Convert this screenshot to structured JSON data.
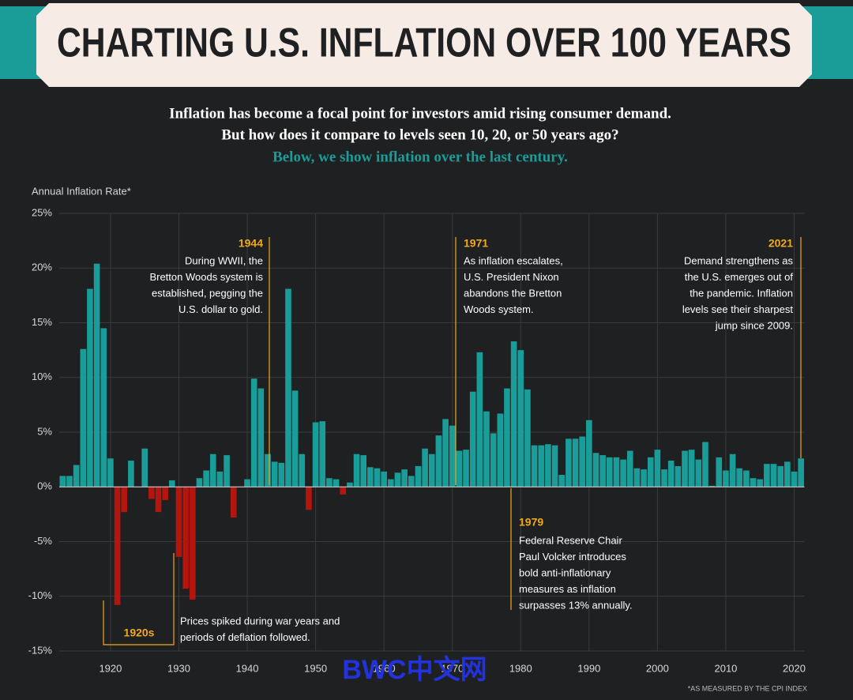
{
  "chart_data": {
    "type": "bar",
    "title": "CHARTING U.S. INFLATION OVER 100 YEARS",
    "subtitle": [
      "Inflation has become a focal point for investors amid rising consumer demand.",
      "But how does it compare to levels seen 10, 20, or 50 years ago?",
      "Below, we show inflation over the last century."
    ],
    "y_label": "Annual Inflation Rate*",
    "footnote": "*AS MEASURED BY THE CPI INDEX",
    "watermark": "BWC中文网",
    "x": [
      1913,
      1914,
      1915,
      1916,
      1917,
      1918,
      1919,
      1920,
      1921,
      1922,
      1923,
      1924,
      1925,
      1926,
      1927,
      1928,
      1929,
      1930,
      1931,
      1932,
      1933,
      1934,
      1935,
      1936,
      1937,
      1938,
      1939,
      1940,
      1941,
      1942,
      1943,
      1944,
      1945,
      1946,
      1947,
      1948,
      1949,
      1950,
      1951,
      1952,
      1953,
      1954,
      1955,
      1956,
      1957,
      1958,
      1959,
      1960,
      1961,
      1962,
      1963,
      1964,
      1965,
      1966,
      1967,
      1968,
      1969,
      1970,
      1971,
      1972,
      1973,
      1974,
      1975,
      1976,
      1977,
      1978,
      1979,
      1980,
      1981,
      1982,
      1983,
      1984,
      1985,
      1986,
      1987,
      1988,
      1989,
      1990,
      1991,
      1992,
      1993,
      1994,
      1995,
      1996,
      1997,
      1998,
      1999,
      2000,
      2001,
      2002,
      2003,
      2004,
      2005,
      2006,
      2007,
      2008,
      2009,
      2010,
      2011,
      2012,
      2013,
      2014,
      2015,
      2016,
      2017,
      2018,
      2019,
      2020,
      2021
    ],
    "values": [
      1.0,
      1.0,
      2.0,
      12.6,
      18.1,
      20.4,
      14.5,
      2.6,
      -10.8,
      -2.3,
      2.4,
      0.0,
      3.5,
      -1.1,
      -2.3,
      -1.2,
      0.6,
      -6.4,
      -9.3,
      -10.3,
      0.8,
      1.5,
      3.0,
      1.4,
      2.9,
      -2.8,
      0.0,
      0.7,
      9.9,
      9.0,
      3.0,
      2.3,
      2.2,
      18.1,
      8.8,
      3.0,
      -2.1,
      5.9,
      6.0,
      0.8,
      0.7,
      -0.7,
      0.4,
      3.0,
      2.9,
      1.8,
      1.7,
      1.4,
      0.7,
      1.3,
      1.6,
      1.0,
      1.9,
      3.5,
      3.0,
      4.7,
      6.2,
      5.6,
      3.3,
      3.4,
      8.7,
      12.3,
      6.9,
      4.9,
      6.7,
      9.0,
      13.3,
      12.5,
      8.9,
      3.8,
      3.8,
      3.9,
      3.8,
      1.1,
      4.4,
      4.4,
      4.6,
      6.1,
      3.1,
      2.9,
      2.7,
      2.7,
      2.5,
      3.3,
      1.7,
      1.6,
      2.7,
      3.4,
      1.6,
      2.4,
      1.9,
      3.3,
      3.4,
      2.5,
      4.1,
      0.1,
      2.7,
      1.5,
      3.0,
      1.7,
      1.5,
      0.8,
      0.7,
      2.1,
      2.1,
      1.9,
      2.3,
      1.4,
      2.6
    ],
    "positive_color": "#1a9c98",
    "negative_color": "#b3150f",
    "xlim": [
      1912.5,
      2021.5
    ],
    "xticks": [
      1920,
      1930,
      1940,
      1950,
      1960,
      1970,
      1980,
      1990,
      2000,
      2010,
      2020
    ],
    "ylim": [
      -15,
      25
    ],
    "yticks": [
      {
        "value": -15,
        "label": "-15%"
      },
      {
        "value": -10,
        "label": "-10%"
      },
      {
        "value": -5,
        "label": "-5%"
      },
      {
        "value": 0,
        "label": "0%"
      },
      {
        "value": 5,
        "label": "5%"
      },
      {
        "value": 10,
        "label": "10%"
      },
      {
        "value": 15,
        "label": "15%"
      },
      {
        "value": 20,
        "label": "20%"
      },
      {
        "value": 25,
        "label": "25%"
      }
    ],
    "grid": true,
    "annotations": [
      {
        "label": "1944",
        "text": [
          "During WWII, the",
          "Bretton Woods system is",
          "established, pegging the",
          "U.S. dollar to gold."
        ]
      },
      {
        "label": "1971",
        "text": [
          "As inflation escalates,",
          "U.S. President Nixon",
          "abandons the Bretton",
          "Woods system."
        ]
      },
      {
        "label": "2021",
        "text": [
          "Demand strengthens as",
          "the U.S. emerges out of",
          "the pandemic. Inflation",
          "levels see their sharpest",
          "jump since 2009."
        ]
      },
      {
        "label": "1979",
        "text": [
          "Federal Reserve Chair",
          "Paul Volcker introduces",
          "bold anti-inflationary",
          "measures as inflation",
          "surpasses 13% annually."
        ]
      },
      {
        "label": "1920s",
        "text": [
          "Prices spiked during war years and",
          "periods of deflation followed."
        ]
      }
    ]
  }
}
